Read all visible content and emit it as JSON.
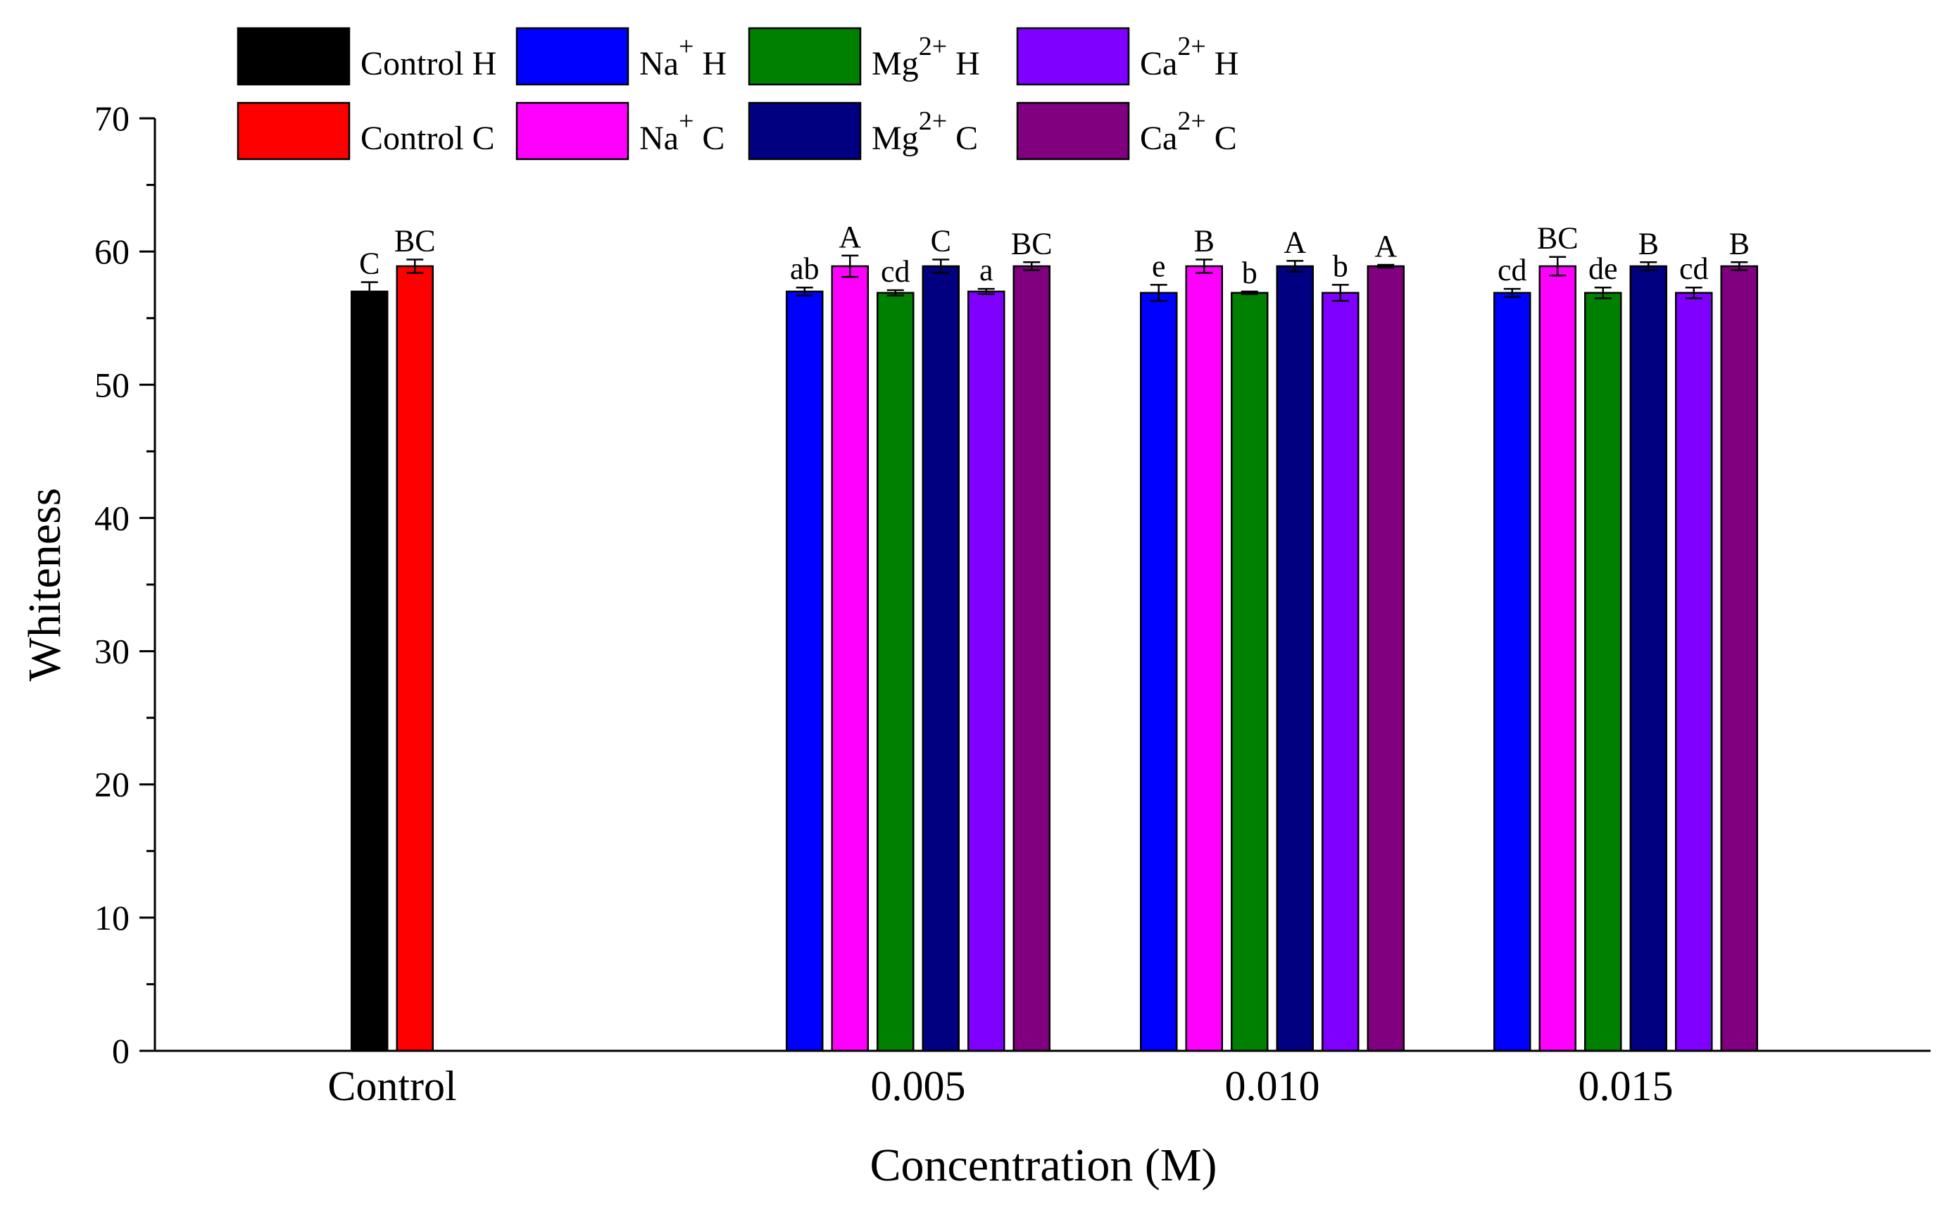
{
  "chart_data": {
    "type": "bar",
    "title": "",
    "xlabel": "Concentration (M)",
    "ylabel": "Whiteness",
    "ylim": [
      0,
      70
    ],
    "yticks": [
      0,
      10,
      20,
      30,
      40,
      50,
      60,
      70
    ],
    "legend_position": "top",
    "groups": [
      {
        "label": "Control",
        "bars": [
          {
            "series": "Control H",
            "value": 57.0,
            "error": 0.7,
            "letter": "C"
          },
          {
            "series": "Control C",
            "value": 58.9,
            "error": 0.5,
            "letter": "BC"
          }
        ]
      },
      {
        "label": "0.005",
        "bars": [
          {
            "series": "Na+ H",
            "value": 57.0,
            "error": 0.3,
            "letter": "ab"
          },
          {
            "series": "Na+ C",
            "value": 58.9,
            "error": 0.8,
            "letter": "A"
          },
          {
            "series": "Mg2+ H",
            "value": 56.9,
            "error": 0.2,
            "letter": "cd"
          },
          {
            "series": "Mg2+ C",
            "value": 58.9,
            "error": 0.5,
            "letter": "C"
          },
          {
            "series": "Ca2+ H",
            "value": 57.0,
            "error": 0.2,
            "letter": "a"
          },
          {
            "series": "Ca2+ C",
            "value": 58.9,
            "error": 0.3,
            "letter": "BC"
          }
        ]
      },
      {
        "label": "0.010",
        "bars": [
          {
            "series": "Na+ H",
            "value": 56.9,
            "error": 0.6,
            "letter": "e"
          },
          {
            "series": "Na+ C",
            "value": 58.9,
            "error": 0.5,
            "letter": "B"
          },
          {
            "series": "Mg2+ H",
            "value": 56.9,
            "error": 0.1,
            "letter": "b"
          },
          {
            "series": "Mg2+ C",
            "value": 58.9,
            "error": 0.4,
            "letter": "A"
          },
          {
            "series": "Ca2+ H",
            "value": 56.9,
            "error": 0.6,
            "letter": "b"
          },
          {
            "series": "Ca2+ C",
            "value": 58.9,
            "error": 0.1,
            "letter": "A"
          }
        ]
      },
      {
        "label": "0.015",
        "bars": [
          {
            "series": "Na+ H",
            "value": 56.9,
            "error": 0.3,
            "letter": "cd"
          },
          {
            "series": "Na+ C",
            "value": 58.9,
            "error": 0.7,
            "letter": "BC"
          },
          {
            "series": "Mg2+ H",
            "value": 56.9,
            "error": 0.4,
            "letter": "de"
          },
          {
            "series": "Mg2+ C",
            "value": 58.9,
            "error": 0.3,
            "letter": "B"
          },
          {
            "series": "Ca2+ H",
            "value": 56.9,
            "error": 0.4,
            "letter": "cd"
          },
          {
            "series": "Ca2+ C",
            "value": 58.9,
            "error": 0.3,
            "letter": "B"
          }
        ]
      }
    ],
    "series": [
      {
        "name": "Control H",
        "base": "Control",
        "sup": "",
        "suffix": "H",
        "color": "#000000"
      },
      {
        "name": "Control C",
        "base": "Control",
        "sup": "",
        "suffix": "C",
        "color": "#ff0000"
      },
      {
        "name": "Na+ H",
        "base": "Na",
        "sup": "+",
        "suffix": "H",
        "color": "#0000ff"
      },
      {
        "name": "Na+ C",
        "base": "Na",
        "sup": "+",
        "suffix": "C",
        "color": "#ff00ff"
      },
      {
        "name": "Mg2+ H",
        "base": "Mg",
        "sup": "2+",
        "suffix": "H",
        "color": "#008000"
      },
      {
        "name": "Mg2+ C",
        "base": "Mg",
        "sup": "2+",
        "suffix": "C",
        "color": "#000080"
      },
      {
        "name": "Ca2+ H",
        "base": "Ca",
        "sup": "2+",
        "suffix": "H",
        "color": "#8000ff"
      },
      {
        "name": "Ca2+ C",
        "base": "Ca",
        "sup": "2+",
        "suffix": "C",
        "color": "#800080"
      }
    ]
  }
}
